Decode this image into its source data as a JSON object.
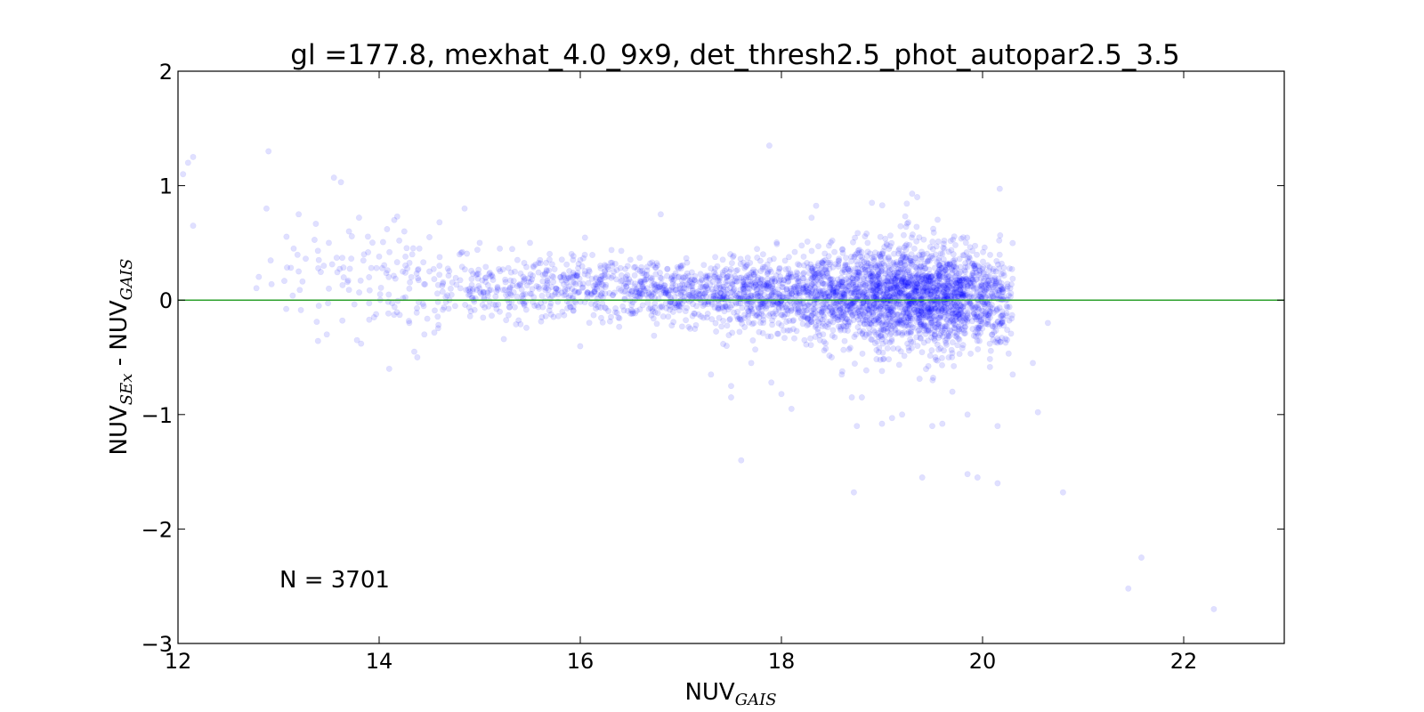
{
  "chart_data": {
    "type": "scatter",
    "title": "gl =177.8, mexhat_4.0_9x9, det_thresh2.5_phot_autopar2.5_3.5",
    "xlabel": {
      "main": "NUV",
      "sub": "GAIS"
    },
    "ylabel": {
      "main_a": "NUV",
      "sub_a": "SEx",
      "sep": " - ",
      "main_b": "NUV",
      "sub_b": "GAIS"
    },
    "xlim": [
      12,
      23
    ],
    "ylim": [
      -3,
      2
    ],
    "xticks": [
      12,
      14,
      16,
      18,
      20,
      22
    ],
    "yticks": [
      -3,
      -2,
      -1,
      0,
      1,
      2
    ],
    "xtick_labels": [
      "12",
      "14",
      "16",
      "18",
      "20",
      "22"
    ],
    "ytick_labels": [
      "−3",
      "−2",
      "−1",
      "0",
      "1",
      "2"
    ],
    "grid": false,
    "reference_line": {
      "y": 0,
      "color": "#2ca02c"
    },
    "point_color": "#0000ff",
    "point_alpha": 0.12,
    "annotation": "N = 3701",
    "n_points": 3701,
    "points": [
      [
        12.1,
        1.2
      ],
      [
        12.15,
        1.25
      ],
      [
        12.05,
        1.1
      ],
      [
        12.15,
        0.65
      ],
      [
        12.9,
        1.3
      ],
      [
        12.88,
        0.8
      ],
      [
        13.2,
        0.75
      ],
      [
        13.15,
        0.45
      ],
      [
        13.2,
        0.25
      ],
      [
        13.4,
        0.35
      ],
      [
        13.45,
        0.3
      ],
      [
        13.5,
        0.5
      ],
      [
        13.5,
        0.1
      ],
      [
        13.48,
        -0.3
      ],
      [
        13.4,
        -0.05
      ],
      [
        13.55,
        1.07
      ],
      [
        13.62,
        1.03
      ],
      [
        13.7,
        0.6
      ],
      [
        13.8,
        0.72
      ],
      [
        13.85,
        0.4
      ],
      [
        13.9,
        0.2
      ],
      [
        13.95,
        -0.15
      ],
      [
        13.78,
        -0.35
      ],
      [
        13.82,
        -0.38
      ],
      [
        14.0,
        0.38
      ],
      [
        14.1,
        -0.6
      ],
      [
        14.15,
        0.7
      ],
      [
        14.18,
        0.73
      ],
      [
        14.2,
        0.52
      ],
      [
        14.25,
        0.6
      ],
      [
        14.3,
        -0.2
      ],
      [
        14.3,
        0.1
      ],
      [
        14.35,
        -0.45
      ],
      [
        14.38,
        -0.5
      ],
      [
        14.4,
        0.45
      ],
      [
        14.45,
        -0.3
      ],
      [
        14.5,
        0.55
      ],
      [
        14.5,
        0.25
      ],
      [
        14.6,
        0.68
      ],
      [
        14.6,
        0.3
      ],
      [
        14.7,
        0.0
      ],
      [
        14.8,
        0.4
      ],
      [
        14.85,
        0.8
      ],
      [
        14.9,
        0.1
      ],
      [
        15.0,
        0.5
      ],
      [
        15.2,
        0.45
      ],
      [
        15.5,
        0.5
      ],
      [
        15.6,
        0.35
      ],
      [
        15.8,
        0.2
      ],
      [
        16.0,
        0.35
      ],
      [
        16.2,
        0.3
      ],
      [
        16.4,
        0.28
      ],
      [
        16.5,
        0.05
      ],
      [
        16.8,
        0.75
      ],
      [
        17.0,
        0.3
      ],
      [
        17.3,
        -0.65
      ],
      [
        17.5,
        -0.75
      ],
      [
        17.5,
        -0.85
      ],
      [
        17.6,
        -1.4
      ],
      [
        17.7,
        -0.55
      ],
      [
        17.88,
        1.35
      ],
      [
        17.9,
        -0.72
      ],
      [
        18.0,
        -0.82
      ],
      [
        18.1,
        -0.95
      ],
      [
        18.3,
        0.72
      ],
      [
        18.5,
        -0.5
      ],
      [
        18.6,
        -0.65
      ],
      [
        18.7,
        -0.85
      ],
      [
        18.75,
        -1.1
      ],
      [
        18.8,
        -0.85
      ],
      [
        18.9,
        0.85
      ],
      [
        19.0,
        -1.08
      ],
      [
        19.0,
        -0.62
      ],
      [
        19.1,
        -1.03
      ],
      [
        19.2,
        -1.0
      ],
      [
        19.3,
        0.93
      ],
      [
        19.35,
        0.9
      ],
      [
        19.4,
        -1.55
      ],
      [
        19.5,
        -1.1
      ],
      [
        19.6,
        -1.08
      ],
      [
        19.7,
        -0.8
      ],
      [
        19.85,
        -1.0
      ],
      [
        19.85,
        -1.52
      ],
      [
        19.95,
        -1.55
      ],
      [
        20.15,
        -1.6
      ],
      [
        20.15,
        -1.1
      ],
      [
        20.3,
        -0.65
      ],
      [
        20.5,
        -0.55
      ],
      [
        20.55,
        -0.98
      ],
      [
        20.65,
        -0.2
      ],
      [
        18.72,
        -1.68
      ],
      [
        20.8,
        -1.68
      ],
      [
        21.45,
        -2.52
      ],
      [
        21.58,
        -2.25
      ],
      [
        22.3,
        -2.7
      ]
    ],
    "clusters": [
      {
        "x": 13.5,
        "y": 0.22,
        "sx": 0.35,
        "sy": 0.22,
        "n": 40
      },
      {
        "x": 14.3,
        "y": 0.12,
        "sx": 0.35,
        "sy": 0.2,
        "n": 70
      },
      {
        "x": 15.0,
        "y": 0.1,
        "sx": 0.4,
        "sy": 0.15,
        "n": 120
      },
      {
        "x": 15.6,
        "y": 0.1,
        "sx": 0.35,
        "sy": 0.13,
        "n": 130
      },
      {
        "x": 16.2,
        "y": 0.12,
        "sx": 0.35,
        "sy": 0.13,
        "n": 170
      },
      {
        "x": 16.8,
        "y": 0.06,
        "sx": 0.35,
        "sy": 0.13,
        "n": 200
      },
      {
        "x": 17.3,
        "y": 0.06,
        "sx": 0.35,
        "sy": 0.14,
        "n": 260
      },
      {
        "x": 17.9,
        "y": 0.04,
        "sx": 0.35,
        "sy": 0.15,
        "n": 330
      },
      {
        "x": 18.4,
        "y": 0.04,
        "sx": 0.3,
        "sy": 0.18,
        "n": 420
      },
      {
        "x": 18.9,
        "y": 0.04,
        "sx": 0.28,
        "sy": 0.22,
        "n": 560
      },
      {
        "x": 19.35,
        "y": 0.05,
        "sx": 0.25,
        "sy": 0.24,
        "n": 720
      },
      {
        "x": 19.75,
        "y": 0.03,
        "sx": 0.22,
        "sy": 0.22,
        "n": 520
      },
      {
        "x": 20.15,
        "y": -0.05,
        "sx": 0.15,
        "sy": 0.18,
        "n": 140
      }
    ]
  }
}
